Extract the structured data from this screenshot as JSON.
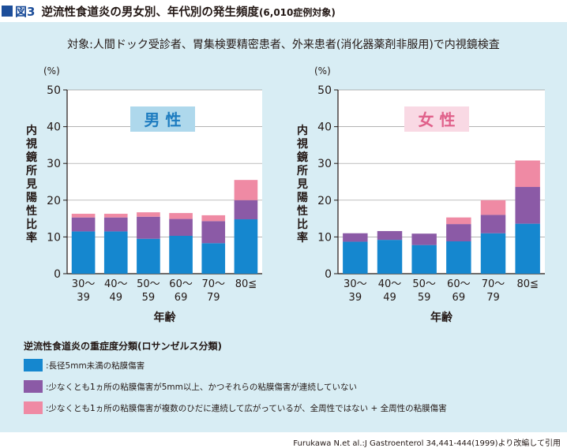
{
  "header": {
    "fig_label": "図3",
    "title": "逆流性食道炎の男女別、年代別の発生頻度",
    "title_sub": "(6,010症例対象)"
  },
  "subject_text": "対象:人間ドック受診者、胃集検要精密患者、外来患者(消化器薬剤非服用)で内視鏡検査",
  "colors": {
    "panel_bg": "#d8edf4",
    "series": [
      "#1587cf",
      "#8b5aa6",
      "#ef8aa4"
    ],
    "male_label_bg": "#aed8ec",
    "male_label_fg": "#1d7cc0",
    "female_label_bg": "#f9d9e4",
    "female_label_fg": "#e0608a",
    "header_accent": "#1d4e9a"
  },
  "chart_data": [
    {
      "type": "bar",
      "stacked": true,
      "group_label": "男 性",
      "categories": [
        [
          "30〜",
          "39"
        ],
        [
          "40〜",
          "49"
        ],
        [
          "50〜",
          "59"
        ],
        [
          "60〜",
          "69"
        ],
        [
          "70〜",
          "79"
        ],
        [
          "80≦",
          ""
        ]
      ],
      "series": [
        {
          "values": [
            11.5,
            11.5,
            9.5,
            10.3,
            8.3,
            14.8
          ]
        },
        {
          "values": [
            3.8,
            3.8,
            6.0,
            4.6,
            6.0,
            5.2
          ]
        },
        {
          "values": [
            1.0,
            1.0,
            1.2,
            1.6,
            1.6,
            5.5
          ]
        }
      ],
      "ylim": [
        0,
        50
      ],
      "yticks": [
        0,
        10,
        20,
        30,
        40,
        50
      ],
      "ylabel": "内視鏡所見陽性比率",
      "yunit": "(%)",
      "xlabel": "年齢"
    },
    {
      "type": "bar",
      "stacked": true,
      "group_label": "女 性",
      "categories": [
        [
          "30〜",
          "39"
        ],
        [
          "40〜",
          "49"
        ],
        [
          "50〜",
          "59"
        ],
        [
          "60〜",
          "69"
        ],
        [
          "70〜",
          "79"
        ],
        [
          "80≦",
          ""
        ]
      ],
      "series": [
        {
          "values": [
            8.7,
            9.2,
            7.8,
            8.8,
            11.0,
            13.6
          ]
        },
        {
          "values": [
            2.3,
            2.4,
            3.1,
            4.7,
            5.0,
            10.0
          ]
        },
        {
          "values": [
            0,
            0,
            0,
            1.8,
            4.0,
            7.2
          ]
        }
      ],
      "ylim": [
        0,
        50
      ],
      "yticks": [
        0,
        10,
        20,
        30,
        40,
        50
      ],
      "ylabel": "内視鏡所見陽性比率",
      "yunit": "(%)",
      "xlabel": "年齢"
    }
  ],
  "classification": {
    "title": "逆流性食道炎の重症度分類(ロサンゼルス分類)",
    "items": [
      {
        "label": ":長径5mm未満の粘膜傷害"
      },
      {
        "label": ":少なくとも1ヵ所の粘膜傷害が5mm以上、かつそれらの粘膜傷害が連続していない"
      },
      {
        "label": ":少なくとも1ヵ所の粘膜傷害が複数のひだに連続して広がっているが、全周性ではない + 全周性の粘膜傷害"
      }
    ]
  },
  "citation": "Furukawa N.et al.:J Gastroenterol 34,441-444(1999)より改編して引用"
}
